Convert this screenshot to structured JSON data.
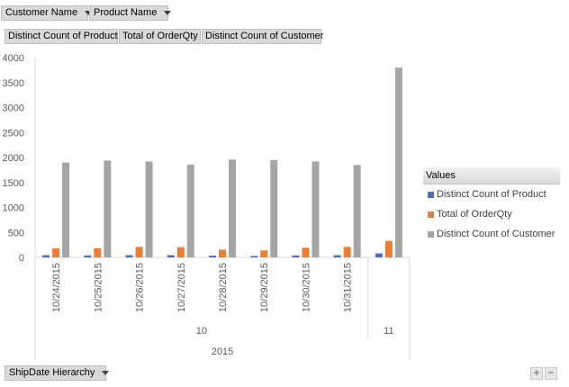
{
  "filters": {
    "customer_name": "Customer Name",
    "product_name": "Product Name"
  },
  "values_area": {
    "items": [
      "Distinct Count of Product",
      "Total of OrderQty",
      "Distinct Count of Customer"
    ]
  },
  "axis_field": {
    "label": "ShipDate Hierarchy"
  },
  "legend": {
    "title": "Values"
  },
  "zoom": {
    "plus": "+",
    "minus": "−"
  },
  "colors": {
    "product": "#4472c4",
    "orderqty": "#ed7d31",
    "customer": "#a5a5a5"
  },
  "chart_data": {
    "type": "bar",
    "categories": [
      "10/24/2015",
      "10/25/2015",
      "10/26/2015",
      "10/27/2015",
      "10/28/2015",
      "10/29/2015",
      "10/30/2015",
      "10/31/2015",
      ""
    ],
    "category_groups": {
      "month": [
        {
          "label": "10",
          "span": 8
        },
        {
          "label": "11",
          "span": 1
        }
      ],
      "year": [
        {
          "label": "2015",
          "span": 9
        }
      ]
    },
    "series": [
      {
        "name": "Distinct Count of Product",
        "color": "#4472c4",
        "values": [
          45,
          40,
          45,
          45,
          35,
          30,
          40,
          45,
          80
        ]
      },
      {
        "name": "Total of OrderQty",
        "color": "#ed7d31",
        "values": [
          180,
          185,
          210,
          205,
          155,
          140,
          195,
          210,
          330
        ]
      },
      {
        "name": "Distinct Count of Customer",
        "color": "#a5a5a5",
        "values": [
          1900,
          1940,
          1920,
          1860,
          1960,
          1950,
          1920,
          1850,
          3800
        ]
      }
    ],
    "ylim": [
      0,
      4000
    ],
    "yticks": [
      0,
      500,
      1000,
      1500,
      2000,
      2500,
      3000,
      3500,
      4000
    ],
    "grid": false,
    "legend_position": "right"
  }
}
